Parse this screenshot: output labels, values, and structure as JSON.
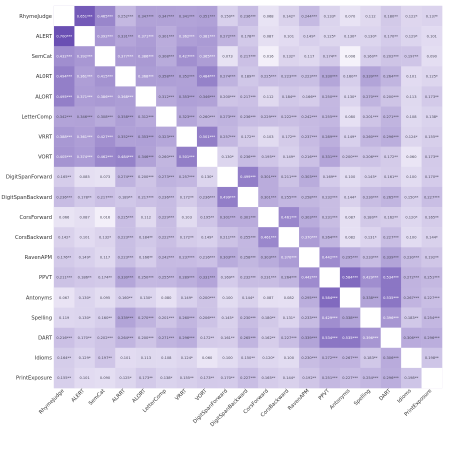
{
  "chart_data": {
    "type": "heatmap",
    "colors": {
      "high": "#6a4fb3",
      "low": "#f6f3fb",
      "diagonal": "#ffffff"
    },
    "variables": [
      "RhymeJudge",
      "ALERT",
      "SemCat",
      "AL0RT",
      "ALORT",
      "LetterComp",
      "VRRT",
      "VORT",
      "DigitSpanForward",
      "DigitSpanBackward",
      "CorsForward",
      "CorsBackward",
      "RavenAPM",
      "PPVT",
      "Antonyms",
      "Spelling",
      "DART",
      "Idioms",
      "PrintExposure"
    ],
    "x_labels": [
      "RhymeJudge",
      "ALERT",
      "SemCat",
      "ALRRT",
      "ALORT",
      "LetterComp",
      "VRRT",
      "VORT",
      "DigitSpanForward",
      "DigitSpanBackward",
      "CorsForward",
      "CorsBackward",
      "RavenAPM",
      "PPVT",
      "Antonyms",
      "Spelling",
      "DART",
      "Idioms",
      "PrintExposure"
    ],
    "matrix": [
      [
        null,
        0.651,
        0.465,
        0.252,
        0.347,
        0.347,
        0.341,
        0.351,
        0.15,
        0.236,
        0.068,
        0.142,
        0.244,
        0.133,
        0.07,
        0.112,
        0.18,
        0.122,
        0.137
      ],
      [
        0.7,
        null,
        0.392,
        0.331,
        0.371,
        0.301,
        0.362,
        0.381,
        0.272,
        0.178,
        0.087,
        0.101,
        0.149,
        0.125,
        0.13,
        0.13,
        0.17,
        0.129,
        0.101
      ],
      [
        0.432,
        0.392,
        null,
        0.377,
        0.386,
        0.308,
        0.427,
        0.365,
        0.073,
        0.217,
        0.016,
        0.132,
        0.117,
        0.174,
        0.006,
        0.16,
        0.202,
        0.197,
        0.09
      ],
      [
        0.494,
        0.361,
        0.415,
        null,
        0.368,
        0.358,
        0.352,
        0.484,
        0.274,
        0.189,
        0.225,
        0.223,
        0.223,
        0.33,
        0.16,
        0.339,
        0.264,
        0.101,
        0.125
      ],
      [
        0.495,
        0.371,
        0.386,
        0.368,
        null,
        0.312,
        0.353,
        0.346,
        0.2,
        0.217,
        0.112,
        0.184,
        0.166,
        0.25,
        0.13,
        0.27,
        0.2,
        0.113,
        0.173
      ],
      [
        0.342,
        0.346,
        0.308,
        0.358,
        0.312,
        null,
        0.323,
        0.26,
        0.273,
        0.236,
        0.229,
        0.222,
        0.242,
        0.255,
        0.08,
        0.201,
        0.271,
        0.108,
        0.138
      ],
      [
        0.388,
        0.361,
        0.427,
        0.352,
        0.353,
        0.323,
        null,
        0.501,
        0.257,
        0.172,
        0.103,
        0.172,
        0.237,
        0.289,
        0.149,
        0.26,
        0.296,
        0.124,
        0.155
      ],
      [
        0.405,
        0.374,
        0.462,
        0.484,
        0.346,
        0.26,
        0.501,
        null,
        0.13,
        0.236,
        0.195,
        0.149,
        0.216,
        0.331,
        0.2,
        0.206,
        0.172,
        0.06,
        0.173
      ],
      [
        0.165,
        0.085,
        0.073,
        0.274,
        0.2,
        0.273,
        0.257,
        0.13,
        null,
        0.499,
        0.301,
        0.211,
        0.303,
        0.169,
        0.1,
        0.145,
        0.161,
        0.1,
        0.17
      ],
      [
        0.236,
        0.178,
        0.217,
        0.189,
        0.217,
        0.236,
        0.172,
        0.236,
        0.499,
        null,
        0.301,
        0.255,
        0.258,
        0.232,
        0.144,
        0.23,
        0.265,
        0.15,
        0.227
      ],
      [
        0.066,
        0.087,
        0.016,
        0.225,
        0.112,
        0.229,
        0.103,
        0.195,
        0.301,
        0.301,
        null,
        0.461,
        0.303,
        0.231,
        0.087,
        0.18,
        0.162,
        0.12,
        0.165
      ],
      [
        0.142,
        0.101,
        0.132,
        0.223,
        0.184,
        0.222,
        0.172,
        0.149,
        0.211,
        0.255,
        0.461,
        null,
        0.37,
        0.264,
        0.082,
        0.131,
        0.227,
        0.1,
        0.144
      ],
      [
        0.176,
        0.149,
        0.117,
        0.223,
        0.166,
        0.242,
        0.237,
        0.216,
        0.303,
        0.258,
        0.303,
        0.37,
        null,
        0.442,
        0.295,
        0.233,
        0.339,
        0.23,
        0.192
      ],
      [
        0.211,
        0.186,
        0.174,
        0.33,
        0.25,
        0.255,
        0.289,
        0.331,
        0.169,
        0.232,
        0.231,
        0.264,
        0.442,
        null,
        0.584,
        0.429,
        0.534,
        0.272,
        0.251
      ],
      [
        0.067,
        0.13,
        0.095,
        0.16,
        0.13,
        0.08,
        0.149,
        0.2,
        0.1,
        0.144,
        0.087,
        0.082,
        0.295,
        0.584,
        null,
        0.338,
        0.535,
        0.267,
        0.227
      ],
      [
        0.119,
        0.13,
        0.16,
        0.339,
        0.27,
        0.201,
        0.26,
        0.206,
        0.145,
        0.23,
        0.18,
        0.131,
        0.233,
        0.429,
        0.338,
        null,
        0.396,
        0.183,
        0.254
      ],
      [
        0.216,
        0.17,
        0.202,
        0.264,
        0.2,
        0.271,
        0.296,
        0.172,
        0.161,
        0.265,
        0.162,
        0.227,
        0.339,
        0.534,
        0.535,
        0.396,
        null,
        0.306,
        0.296
      ],
      [
        0.164,
        0.129,
        0.197,
        0.101,
        0.113,
        0.108,
        0.124,
        0.06,
        0.1,
        0.15,
        0.12,
        0.1,
        0.23,
        0.272,
        0.267,
        0.183,
        0.306,
        null,
        0.198
      ],
      [
        0.155,
        0.101,
        0.09,
        0.125,
        0.173,
        0.138,
        0.155,
        0.173,
        0.17,
        0.227,
        0.165,
        0.144,
        0.192,
        0.251,
        0.227,
        0.254,
        0.296,
        0.198,
        null
      ]
    ]
  }
}
